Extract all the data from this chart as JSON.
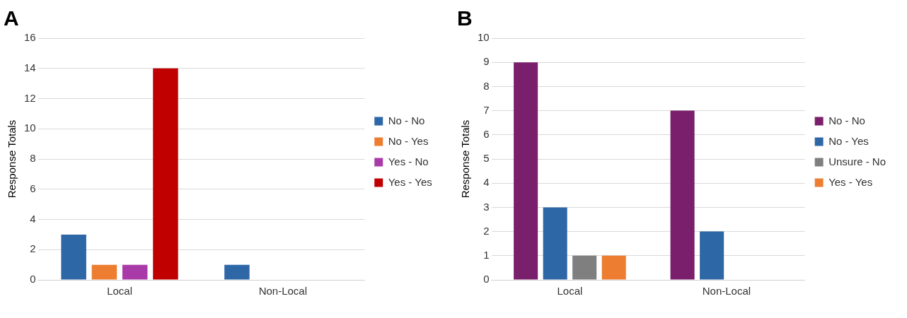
{
  "chart_data": [
    {
      "type": "bar",
      "title": "A",
      "ylabel": "Response Totals",
      "categories": [
        "Local",
        "Non-Local"
      ],
      "series": [
        {
          "name": "No - No",
          "color": "#2e67a6",
          "values": [
            3,
            1
          ]
        },
        {
          "name": "No - Yes",
          "color": "#ed7d31",
          "values": [
            1,
            0
          ]
        },
        {
          "name": "Yes - No",
          "color": "#a93ba8",
          "values": [
            1,
            0
          ]
        },
        {
          "name": "Yes - Yes",
          "color": "#c00000",
          "values": [
            14,
            0
          ]
        }
      ],
      "ylim": [
        0,
        16
      ],
      "yticks": [
        0,
        2,
        4,
        6,
        8,
        10,
        12,
        14,
        16
      ],
      "grid": "y",
      "legend": "right"
    },
    {
      "type": "bar",
      "title": "B",
      "ylabel": "Response Totals",
      "categories": [
        "Local",
        "Non-Local"
      ],
      "series": [
        {
          "name": "No - No",
          "color": "#7a1f6b",
          "values": [
            9,
            7
          ]
        },
        {
          "name": "No - Yes",
          "color": "#2e67a6",
          "values": [
            3,
            2
          ]
        },
        {
          "name": "Unsure - No",
          "color": "#7f7f7f",
          "values": [
            1,
            0
          ]
        },
        {
          "name": "Yes - Yes",
          "color": "#ed7d31",
          "values": [
            1,
            0
          ]
        }
      ],
      "ylim": [
        0,
        10
      ],
      "yticks": [
        0,
        1,
        2,
        3,
        4,
        5,
        6,
        7,
        8,
        9,
        10
      ],
      "grid": "y",
      "legend": "right"
    }
  ]
}
